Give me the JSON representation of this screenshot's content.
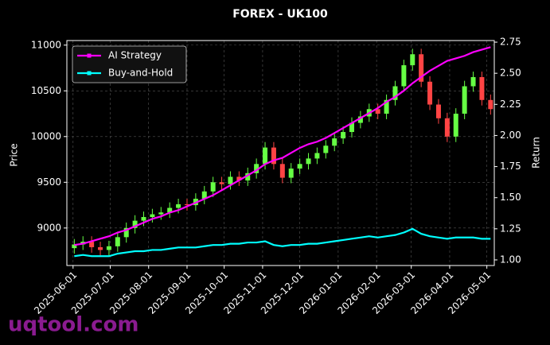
{
  "chart_data": {
    "type": "candlestick",
    "title": "FOREX - UK100",
    "watermark": "uqtool.com",
    "ylabel": "Price",
    "y2label": "Return",
    "grid": true,
    "legend": "upper left",
    "up_color": "#66ff44",
    "down_color": "#ff4444",
    "x": [
      "2025-06-02",
      "2025-06-09",
      "2025-06-16",
      "2025-06-23",
      "2025-06-30",
      "2025-07-07",
      "2025-07-14",
      "2025-07-21",
      "2025-07-28",
      "2025-08-04",
      "2025-08-11",
      "2025-08-18",
      "2025-08-25",
      "2025-09-01",
      "2025-09-08",
      "2025-09-15",
      "2025-09-22",
      "2025-09-29",
      "2025-10-06",
      "2025-10-13",
      "2025-10-20",
      "2025-10-27",
      "2025-11-03",
      "2025-11-10",
      "2025-11-17",
      "2025-11-24",
      "2025-12-01",
      "2025-12-08",
      "2025-12-15",
      "2025-12-22",
      "2025-12-29",
      "2026-01-05",
      "2026-01-12",
      "2026-01-19",
      "2026-01-26",
      "2026-02-02",
      "2026-02-09",
      "2026-02-16",
      "2026-02-23",
      "2026-03-02",
      "2026-03-09",
      "2026-03-16",
      "2026-03-23",
      "2026-03-30",
      "2026-04-06",
      "2026-04-13",
      "2026-04-20",
      "2026-04-27",
      "2026-05-04"
    ],
    "open": [
      8780,
      8820,
      8850,
      8790,
      8760,
      8800,
      8900,
      9000,
      9080,
      9120,
      9150,
      9170,
      9220,
      9260,
      9250,
      9320,
      9400,
      9500,
      9480,
      9560,
      9520,
      9600,
      9700,
      9880,
      9700,
      9550,
      9650,
      9700,
      9760,
      9820,
      9900,
      9980,
      10050,
      10150,
      10220,
      10300,
      10250,
      10400,
      10550,
      10780,
      10900,
      10600,
      10350,
      10200,
      10000,
      10250,
      10550,
      10650,
      10400
    ],
    "high": [
      8880,
      8910,
      8910,
      8850,
      8860,
      8960,
      9060,
      9140,
      9180,
      9210,
      9230,
      9280,
      9320,
      9320,
      9380,
      9460,
      9560,
      9560,
      9620,
      9620,
      9660,
      9760,
      9940,
      9940,
      9760,
      9710,
      9760,
      9820,
      9880,
      9960,
      10040,
      10110,
      10210,
      10280,
      10360,
      10360,
      10460,
      10610,
      10840,
      10960,
      10960,
      10660,
      10410,
      10260,
      10310,
      10610,
      10710,
      10710,
      10460
    ],
    "low": [
      8720,
      8760,
      8730,
      8700,
      8700,
      8740,
      8840,
      8940,
      9020,
      9060,
      9090,
      9110,
      9160,
      9190,
      9190,
      9260,
      9340,
      9420,
      9420,
      9460,
      9460,
      9540,
      9640,
      9640,
      9490,
      9490,
      9590,
      9640,
      9700,
      9760,
      9840,
      9920,
      9990,
      10090,
      10160,
      10190,
      10190,
      10340,
      10490,
      10720,
      10540,
      10290,
      10140,
      9940,
      9940,
      10190,
      10490,
      10340,
      10240
    ],
    "close": [
      8820,
      8850,
      8790,
      8760,
      8800,
      8900,
      9000,
      9080,
      9120,
      9150,
      9170,
      9220,
      9260,
      9250,
      9320,
      9400,
      9500,
      9480,
      9560,
      9520,
      9600,
      9700,
      9880,
      9700,
      9550,
      9650,
      9700,
      9760,
      9820,
      9900,
      9980,
      10050,
      10150,
      10220,
      10300,
      10250,
      10400,
      10550,
      10780,
      10900,
      10600,
      10350,
      10200,
      10000,
      10250,
      10550,
      10650,
      10400,
      10300
    ],
    "series": [
      {
        "name": "AI Strategy",
        "color": "#ff00ff",
        "axis": "y2",
        "values": [
          1.12,
          1.13,
          1.15,
          1.17,
          1.19,
          1.22,
          1.24,
          1.27,
          1.3,
          1.33,
          1.35,
          1.38,
          1.4,
          1.43,
          1.46,
          1.49,
          1.52,
          1.56,
          1.6,
          1.64,
          1.68,
          1.72,
          1.77,
          1.8,
          1.82,
          1.86,
          1.9,
          1.93,
          1.95,
          1.98,
          2.02,
          2.06,
          2.1,
          2.14,
          2.18,
          2.22,
          2.27,
          2.31,
          2.36,
          2.42,
          2.47,
          2.52,
          2.56,
          2.6,
          2.62,
          2.64,
          2.67,
          2.69,
          2.71
        ]
      },
      {
        "name": "Buy-and-Hold",
        "color": "#00ffff",
        "axis": "y2",
        "values": [
          1.03,
          1.04,
          1.03,
          1.03,
          1.03,
          1.05,
          1.06,
          1.07,
          1.07,
          1.08,
          1.08,
          1.09,
          1.1,
          1.1,
          1.1,
          1.11,
          1.12,
          1.12,
          1.13,
          1.13,
          1.14,
          1.14,
          1.15,
          1.12,
          1.11,
          1.12,
          1.12,
          1.13,
          1.13,
          1.14,
          1.15,
          1.16,
          1.17,
          1.18,
          1.19,
          1.18,
          1.19,
          1.2,
          1.22,
          1.25,
          1.21,
          1.19,
          1.18,
          1.17,
          1.18,
          1.18,
          1.18,
          1.17,
          1.17
        ]
      }
    ],
    "xlim": [
      "2025-05-27",
      "2026-05-07"
    ],
    "xticks": [
      "2025-06-01",
      "2025-07-01",
      "2025-08-01",
      "2025-09-01",
      "2025-10-01",
      "2025-11-01",
      "2025-12-01",
      "2026-01-01",
      "2026-02-01",
      "2026-03-01",
      "2026-04-01",
      "2026-05-01"
    ],
    "ylim": [
      8590,
      11050
    ],
    "yticks": [
      9000,
      9500,
      10000,
      10500,
      11000
    ],
    "y2lim": [
      0.955,
      2.763
    ],
    "y2ticks": [
      {
        "value": 1.0,
        "label": "1.00"
      },
      {
        "value": 1.25,
        "label": "1.25"
      },
      {
        "value": 1.5,
        "label": "1.50"
      },
      {
        "value": 1.75,
        "label": "1.75"
      },
      {
        "value": 2.0,
        "label": "2.00"
      },
      {
        "value": 2.25,
        "label": "2.25"
      },
      {
        "value": 2.5,
        "label": "2.50"
      },
      {
        "value": 2.75,
        "label": "2.75"
      }
    ]
  }
}
